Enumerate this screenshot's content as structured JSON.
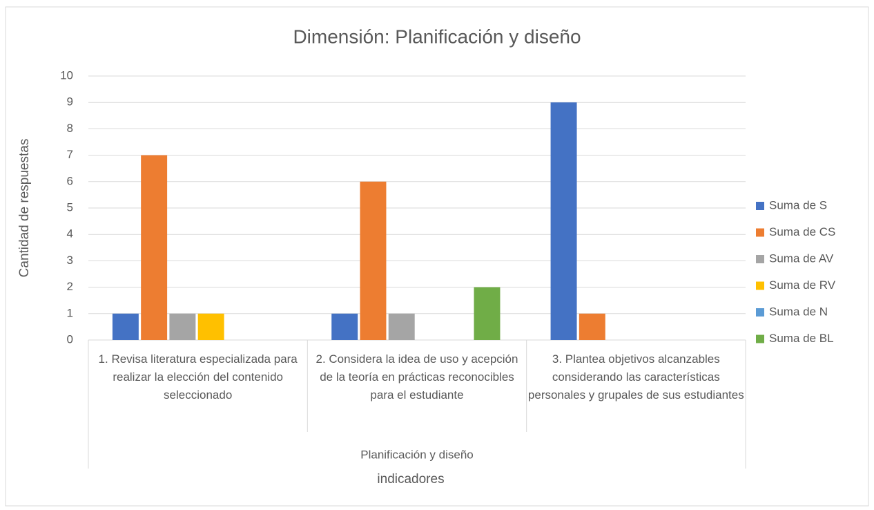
{
  "chart_data": {
    "type": "bar",
    "title": "Dimensión: Planificación y diseño",
    "y_label": "Cantidad de respuestas",
    "x_label": "indicadores",
    "group_label": "Planificación y diseño",
    "categories": [
      "1. Revisa literatura especializada para realizar la elección del contenido seleccionado",
      "2. Considera la idea de uso y acepción de la teoría en prácticas reconocibles para el estudiante",
      "3. Plantea objetivos alcanzables considerando las características personales y grupales de sus estudiantes"
    ],
    "series": [
      {
        "name": "Suma de S",
        "color": "#4472c4",
        "values": [
          1,
          1,
          9
        ]
      },
      {
        "name": "Suma de CS",
        "color": "#ed7d31",
        "values": [
          7,
          6,
          1
        ]
      },
      {
        "name": "Suma de AV",
        "color": "#a5a5a5",
        "values": [
          1,
          1,
          0
        ]
      },
      {
        "name": "Suma de RV",
        "color": "#ffc000",
        "values": [
          1,
          0,
          0
        ]
      },
      {
        "name": "Suma de N",
        "color": "#5b9bd5",
        "values": [
          0,
          0,
          0
        ]
      },
      {
        "name": "Suma de BL",
        "color": "#70ad47",
        "values": [
          0,
          2,
          0
        ]
      }
    ],
    "ylim": [
      0,
      10
    ],
    "yticks": [
      0,
      1,
      2,
      3,
      4,
      5,
      6,
      7,
      8,
      9,
      10
    ],
    "grid": true,
    "legend": "right"
  }
}
